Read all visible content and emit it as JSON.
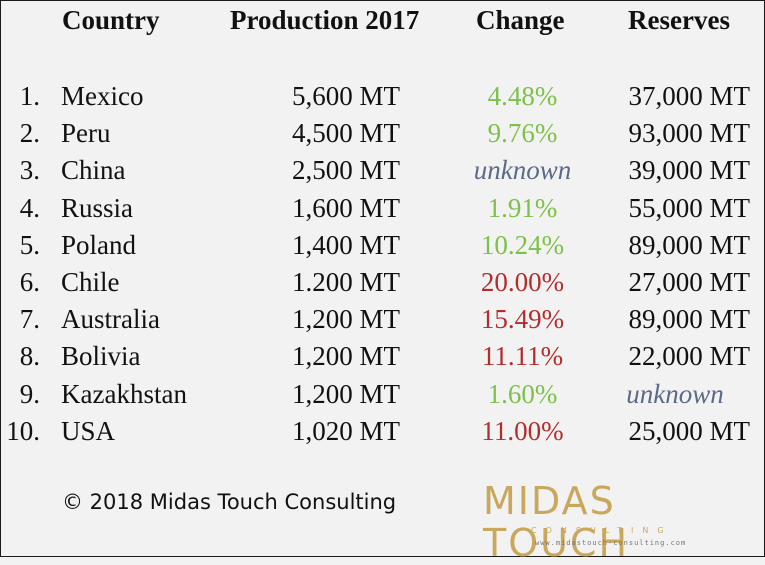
{
  "header": {
    "country": "Country",
    "production": "Production 2017",
    "change": "Change",
    "reserves": "Reserves"
  },
  "rows": [
    {
      "rank": "1.",
      "country": "Mexico",
      "production": "5,600 MT",
      "change": "4.48%",
      "reserves": "37,000 MT"
    },
    {
      "rank": "2.",
      "country": "Peru",
      "production": "4,500 MT",
      "change": "9.76%",
      "reserves": "93,000 MT"
    },
    {
      "rank": "3.",
      "country": "China",
      "production": "2,500 MT",
      "change": "unknown",
      "reserves": "39,000 MT"
    },
    {
      "rank": "4.",
      "country": "Russia",
      "production": "1,600 MT",
      "change": "1.91%",
      "reserves": "55,000 MT"
    },
    {
      "rank": "5.",
      "country": "Poland",
      "production": "1,400 MT",
      "change": "10.24%",
      "reserves": "89,000 MT"
    },
    {
      "rank": "6.",
      "country": "Chile",
      "production": "1.200 MT",
      "change": "20.00%",
      "reserves": "27,000 MT"
    },
    {
      "rank": "7.",
      "country": "Australia",
      "production": "1,200 MT",
      "change": "15.49%",
      "reserves": "89,000 MT"
    },
    {
      "rank": "8.",
      "country": "Bolivia",
      "production": "1,200 MT",
      "change": "11.11%",
      "reserves": "22,000 MT"
    },
    {
      "rank": "9.",
      "country": "Kazakhstan",
      "production": "1,200 MT",
      "change": "1.60%",
      "reserves": "unknown"
    },
    {
      "rank": "10.",
      "country": "USA",
      "production": "1,020 MT",
      "change": "11.00%",
      "reserves": "25,000 MT"
    }
  ],
  "colors": {
    "positive": "#7dc14a",
    "negative": "#b42d2d",
    "unknown": "#5c6a86",
    "logo": "#c9a85c"
  },
  "footer": {
    "copyright": "© 2018 Midas Touch Consulting",
    "logo_word": "MIDAS TOUCH",
    "logo_sub": "CONSULTING",
    "logo_url": "www.midastouch-consulting.com"
  }
}
